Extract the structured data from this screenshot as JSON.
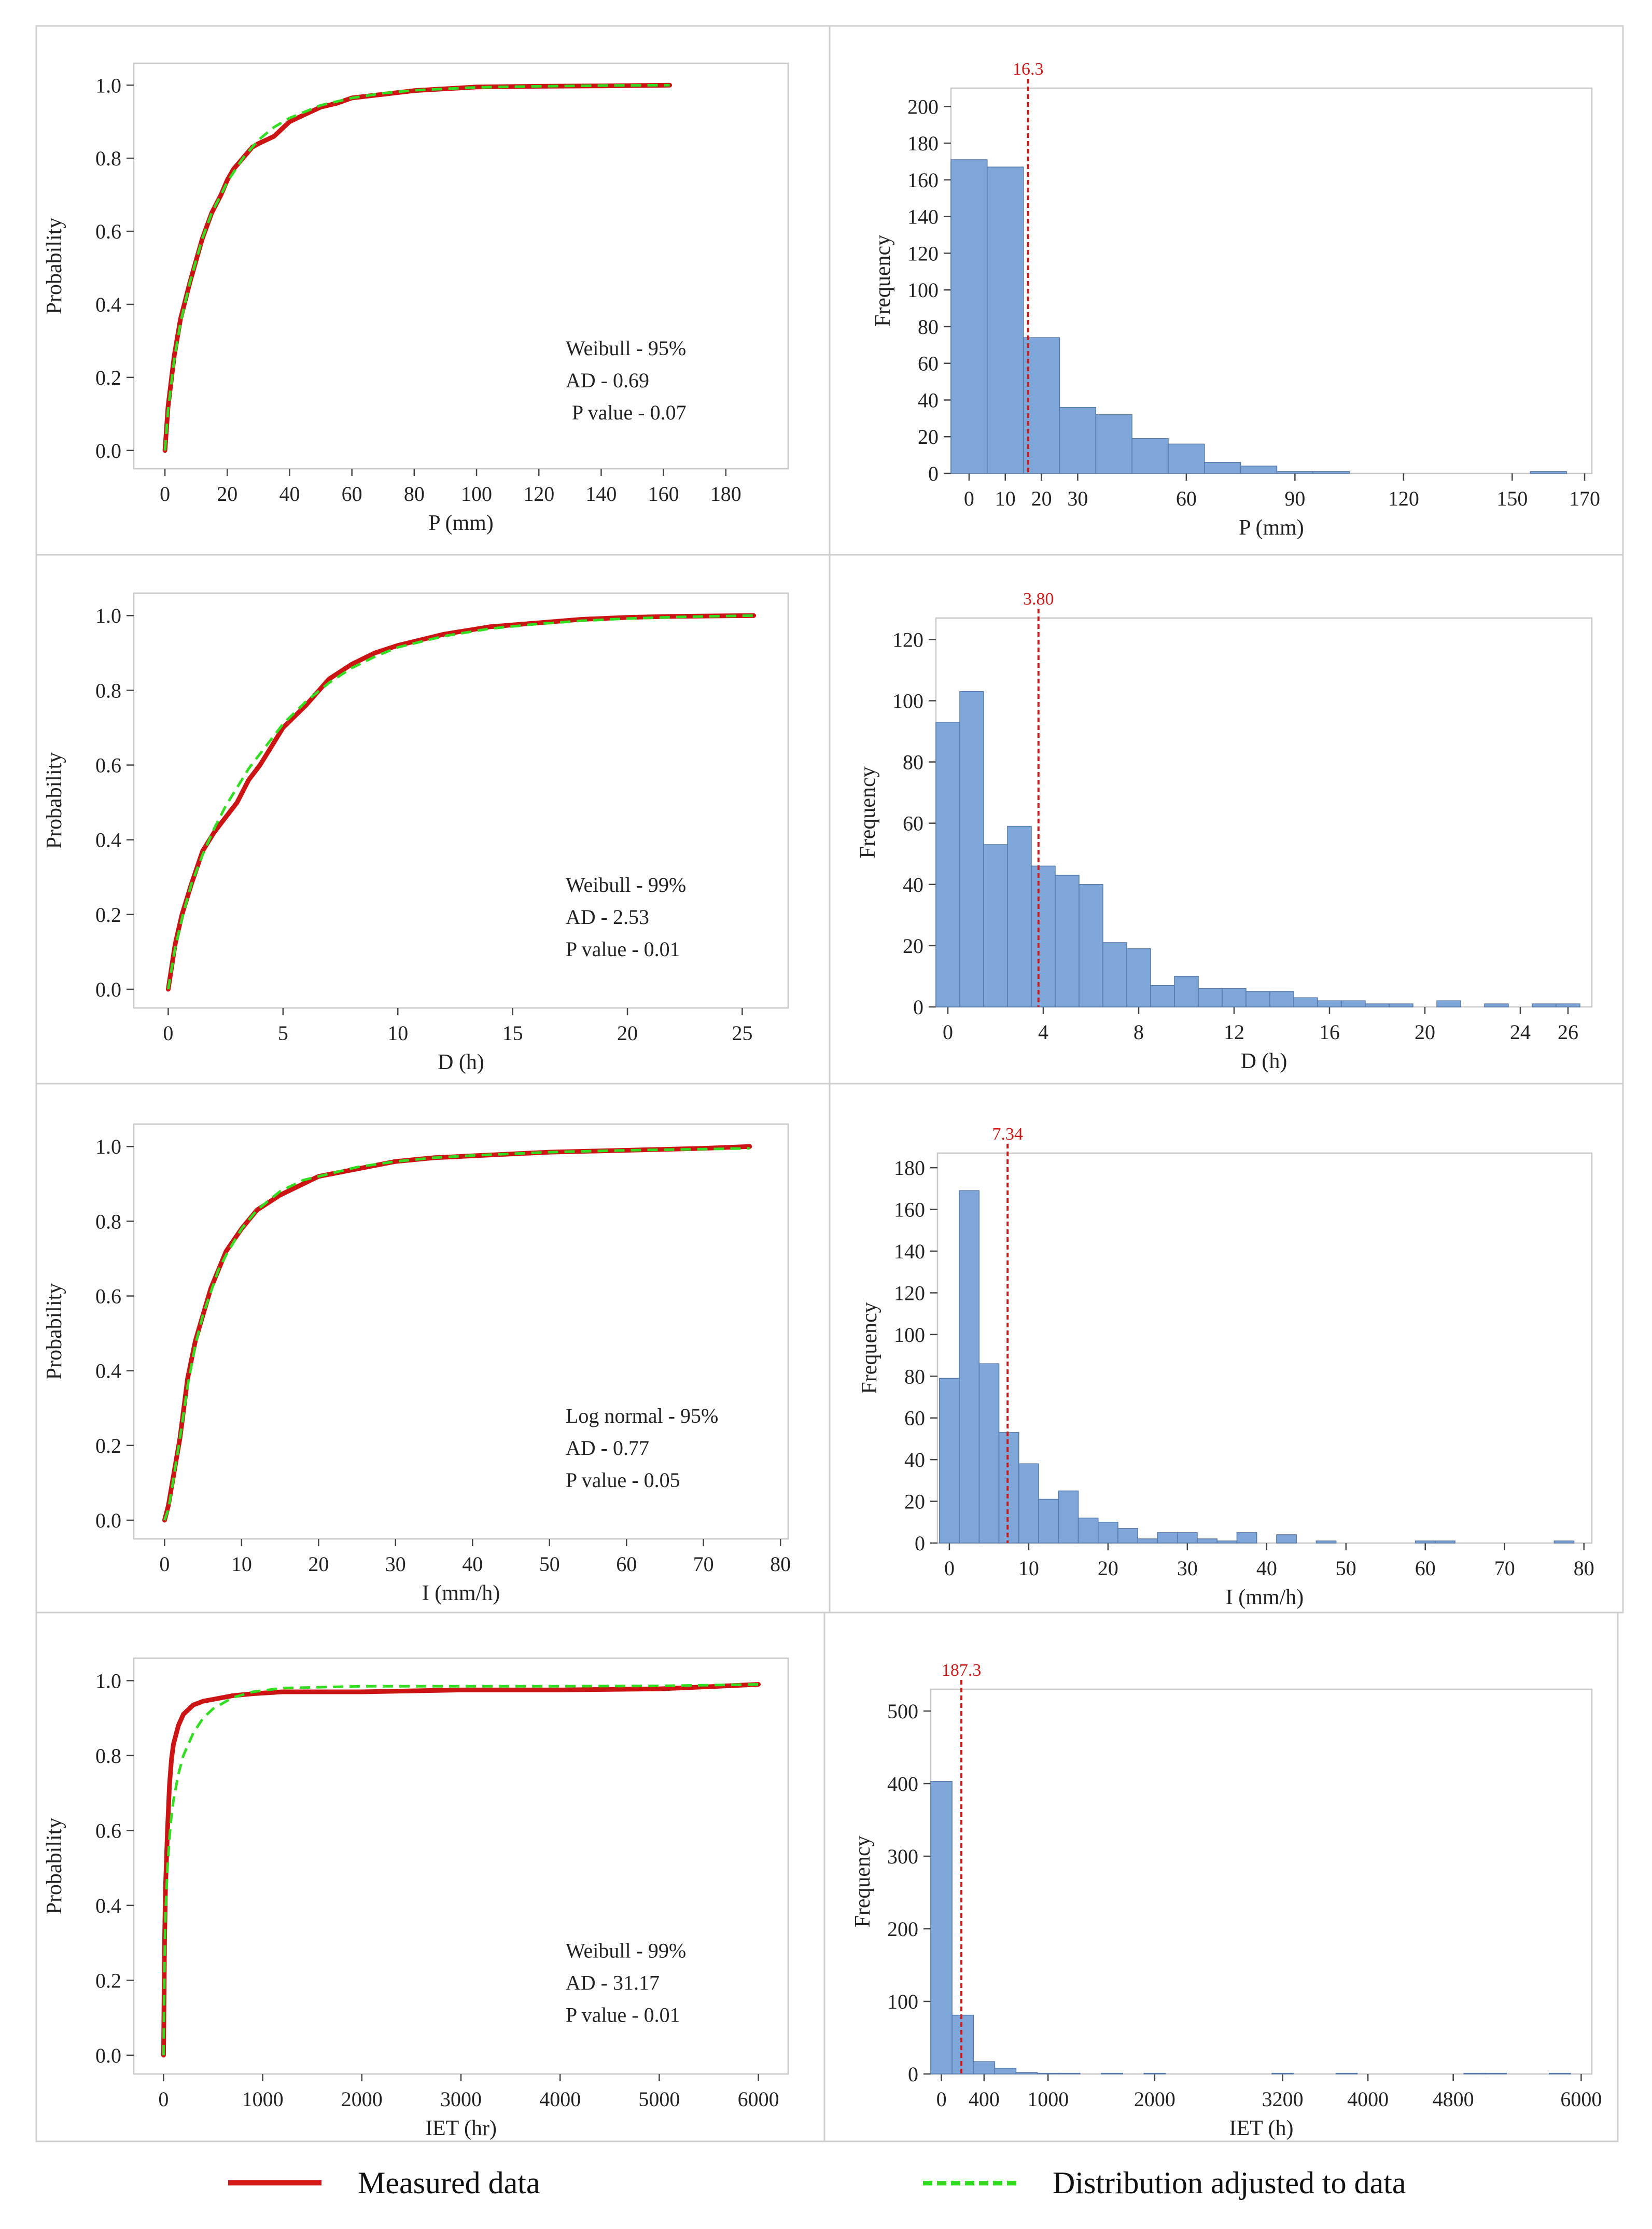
{
  "colors": {
    "measured": "#cc1414",
    "fitted": "#33dd22",
    "bar_fill": "#7ea6d9",
    "bar_stroke": "#5578a8",
    "marker": "#cc1a1a",
    "panel_border": "#cfcfcf",
    "axis_frame": "#c8c8c8"
  },
  "legend": {
    "measured_label": "Measured data",
    "fitted_label": "Distribution adjusted to data"
  },
  "chart_data": [
    {
      "type": "line",
      "id": "cdf-p",
      "xlabel": "P (mm)",
      "ylabel": "Probability",
      "xlim": [
        -10,
        200
      ],
      "ylim": [
        -0.05,
        1.06
      ],
      "xticks": [
        0,
        20,
        40,
        60,
        80,
        100,
        120,
        140,
        160,
        180
      ],
      "yticks": [
        0.0,
        0.2,
        0.4,
        0.6,
        0.8,
        1.0
      ],
      "annotation": [
        "Weibull - 95%",
        "AD - 0.69",
        "P value - 0.07"
      ],
      "series": [
        {
          "name": "Measured data",
          "x": [
            0,
            1,
            3,
            5,
            8,
            10,
            12,
            15,
            18,
            20,
            22,
            25,
            28,
            30,
            35,
            40,
            45,
            50,
            55,
            60,
            70,
            80,
            90,
            100,
            120,
            140,
            162
          ],
          "y": [
            0.0,
            0.12,
            0.26,
            0.36,
            0.46,
            0.52,
            0.58,
            0.65,
            0.7,
            0.74,
            0.77,
            0.8,
            0.83,
            0.84,
            0.86,
            0.9,
            0.92,
            0.94,
            0.95,
            0.965,
            0.975,
            0.985,
            0.99,
            0.995,
            0.997,
            0.998,
            1.0
          ]
        },
        {
          "name": "Distribution adjusted to data",
          "x": [
            0,
            1,
            3,
            5,
            8,
            10,
            12,
            15,
            18,
            20,
            25,
            30,
            35,
            40,
            50,
            60,
            70,
            80,
            100,
            120,
            140,
            162
          ],
          "y": [
            0.0,
            0.11,
            0.25,
            0.35,
            0.46,
            0.52,
            0.58,
            0.65,
            0.7,
            0.735,
            0.8,
            0.85,
            0.885,
            0.91,
            0.945,
            0.965,
            0.978,
            0.986,
            0.994,
            0.997,
            0.999,
            1.0
          ]
        }
      ]
    },
    {
      "type": "bar",
      "id": "hist-p",
      "xlabel": "P (mm)",
      "ylabel": "Frequency",
      "xlim": [
        -5,
        172
      ],
      "ylim": [
        0,
        210
      ],
      "xticks": [
        0,
        10,
        20,
        30,
        60,
        90,
        120,
        150,
        170
      ],
      "yticks": [
        0,
        20,
        40,
        60,
        80,
        100,
        120,
        140,
        160,
        180,
        200
      ],
      "bin_edges": [
        -5,
        5,
        15,
        25,
        35,
        45,
        55,
        65,
        75,
        85,
        95,
        105,
        115,
        125,
        135,
        145,
        155,
        165
      ],
      "values": [
        171,
        167,
        74,
        36,
        32,
        19,
        16,
        6,
        4,
        1,
        1,
        0,
        0,
        0,
        0,
        0,
        1
      ],
      "marker": {
        "value": 16.3,
        "label": "16.3"
      }
    },
    {
      "type": "line",
      "id": "cdf-d",
      "xlabel": "D (h)",
      "ylabel": "Probability",
      "xlim": [
        -1.5,
        27
      ],
      "ylim": [
        -0.05,
        1.06
      ],
      "xticks": [
        0,
        5,
        10,
        15,
        20,
        25
      ],
      "yticks": [
        0.0,
        0.2,
        0.4,
        0.6,
        0.8,
        1.0
      ],
      "annotation": [
        "Weibull - 99%",
        "AD - 2.53",
        "P value - 0.01"
      ],
      "series": [
        {
          "name": "Measured data",
          "x": [
            0,
            0.3,
            0.6,
            1.0,
            1.5,
            2.0,
            2.5,
            3.0,
            3.5,
            4.0,
            4.5,
            5.0,
            6.0,
            7.0,
            8.0,
            9.0,
            10.0,
            12.0,
            14.0,
            16.0,
            18.0,
            20.0,
            22.0,
            25.5
          ],
          "y": [
            0.0,
            0.12,
            0.2,
            0.28,
            0.37,
            0.42,
            0.46,
            0.5,
            0.56,
            0.6,
            0.65,
            0.7,
            0.76,
            0.83,
            0.87,
            0.9,
            0.92,
            0.95,
            0.97,
            0.98,
            0.99,
            0.995,
            0.998,
            1.0
          ]
        },
        {
          "name": "Distribution adjusted to data",
          "x": [
            0,
            0.3,
            0.6,
            1.0,
            1.5,
            2.0,
            2.5,
            3.0,
            3.5,
            4.0,
            4.5,
            5.0,
            6.0,
            7.0,
            8.0,
            9.0,
            10.0,
            12.0,
            14.0,
            16.0,
            18.0,
            20.0,
            22.0,
            25.5
          ],
          "y": [
            0.0,
            0.11,
            0.19,
            0.28,
            0.36,
            0.43,
            0.49,
            0.54,
            0.59,
            0.63,
            0.67,
            0.71,
            0.77,
            0.82,
            0.86,
            0.89,
            0.915,
            0.945,
            0.965,
            0.977,
            0.986,
            0.992,
            0.996,
            1.0
          ]
        }
      ]
    },
    {
      "type": "bar",
      "id": "hist-d",
      "xlabel": "D (h)",
      "ylabel": "Frequency",
      "xlim": [
        -0.5,
        27
      ],
      "ylim": [
        0,
        127
      ],
      "xticks": [
        0,
        4,
        8,
        12,
        16,
        20,
        24,
        26
      ],
      "yticks": [
        0,
        20,
        40,
        60,
        80,
        100,
        120
      ],
      "bin_edges": [
        -0.5,
        0.5,
        1.5,
        2.5,
        3.5,
        4.5,
        5.5,
        6.5,
        7.5,
        8.5,
        9.5,
        10.5,
        11.5,
        12.5,
        13.5,
        14.5,
        15.5,
        16.5,
        17.5,
        18.5,
        19.5,
        20.5,
        21.5,
        22.5,
        23.5,
        24.5,
        25.5,
        26.5
      ],
      "values": [
        93,
        103,
        53,
        59,
        46,
        43,
        40,
        21,
        19,
        7,
        10,
        6,
        6,
        5,
        5,
        3,
        2,
        2,
        1,
        1,
        0,
        2,
        0,
        1,
        0,
        1,
        1
      ],
      "marker": {
        "value": 3.8,
        "label": "3.80"
      }
    },
    {
      "type": "line",
      "id": "cdf-i",
      "xlabel": "I (mm/h)",
      "ylabel": "Probability",
      "xlim": [
        -4,
        81
      ],
      "ylim": [
        -0.05,
        1.06
      ],
      "xticks": [
        0,
        10,
        20,
        30,
        40,
        50,
        60,
        70,
        80
      ],
      "yticks": [
        0.0,
        0.2,
        0.4,
        0.6,
        0.8,
        1.0
      ],
      "annotation": [
        "Log normal - 95%",
        "AD - 0.77",
        "P value - 0.05"
      ],
      "series": [
        {
          "name": "Measured data",
          "x": [
            0,
            0.5,
            1,
            2,
            3,
            4,
            5,
            6,
            7,
            8,
            10,
            12,
            15,
            18,
            20,
            25,
            30,
            35,
            40,
            50,
            60,
            70,
            76
          ],
          "y": [
            0.0,
            0.04,
            0.1,
            0.22,
            0.38,
            0.48,
            0.55,
            0.62,
            0.67,
            0.72,
            0.78,
            0.83,
            0.87,
            0.9,
            0.92,
            0.94,
            0.96,
            0.97,
            0.975,
            0.985,
            0.99,
            0.995,
            1.0
          ]
        },
        {
          "name": "Distribution adjusted to data",
          "x": [
            0,
            0.5,
            1,
            2,
            3,
            4,
            5,
            6,
            7,
            8,
            10,
            12,
            15,
            18,
            20,
            25,
            30,
            35,
            40,
            50,
            60,
            70,
            76
          ],
          "y": [
            0.0,
            0.03,
            0.09,
            0.22,
            0.36,
            0.47,
            0.55,
            0.61,
            0.67,
            0.71,
            0.78,
            0.83,
            0.88,
            0.91,
            0.92,
            0.945,
            0.96,
            0.97,
            0.976,
            0.985,
            0.99,
            0.993,
            0.995
          ]
        }
      ]
    },
    {
      "type": "bar",
      "id": "hist-i",
      "xlabel": "I (mm/h)",
      "ylabel": "Frequency",
      "xlim": [
        -1.5,
        81
      ],
      "ylim": [
        0,
        187
      ],
      "xticks": [
        0,
        10,
        20,
        30,
        40,
        50,
        60,
        70,
        80
      ],
      "yticks": [
        0,
        20,
        40,
        60,
        80,
        100,
        120,
        140,
        160,
        180
      ],
      "bin_edges": [
        -1.25,
        1.25,
        3.75,
        6.25,
        8.75,
        11.25,
        13.75,
        16.25,
        18.75,
        21.25,
        23.75,
        26.25,
        28.75,
        31.25,
        33.75,
        36.25,
        38.75,
        41.25,
        43.75,
        46.25,
        48.75,
        51.25,
        53.75,
        56.25,
        58.75,
        61.25,
        63.75,
        66.25,
        68.75,
        71.25,
        73.75,
        76.25,
        78.75
      ],
      "values": [
        79,
        169,
        86,
        53,
        38,
        21,
        25,
        12,
        10,
        7,
        2,
        5,
        5,
        2,
        1,
        5,
        0,
        4,
        0,
        1,
        0,
        0,
        0,
        0,
        1,
        1,
        0,
        0,
        0,
        0,
        0,
        1
      ],
      "marker": {
        "value": 7.34,
        "label": "7.34"
      }
    },
    {
      "type": "line",
      "id": "cdf-iet",
      "xlabel": "IET (hr)",
      "ylabel": "Probability",
      "xlim": [
        -300,
        6300
      ],
      "ylim": [
        -0.05,
        1.06
      ],
      "xticks": [
        0,
        1000,
        2000,
        3000,
        4000,
        5000,
        6000
      ],
      "yticks": [
        0.0,
        0.2,
        0.4,
        0.6,
        0.8,
        1.0
      ],
      "annotation": [
        "Weibull - 99%",
        "AD - 31.17",
        "P value - 0.01"
      ],
      "series": [
        {
          "name": "Measured data",
          "x": [
            0,
            10,
            20,
            40,
            60,
            80,
            100,
            150,
            200,
            300,
            400,
            500,
            700,
            900,
            1200,
            2000,
            3000,
            4000,
            5000,
            5600,
            6000
          ],
          "y": [
            0.0,
            0.3,
            0.45,
            0.6,
            0.72,
            0.79,
            0.83,
            0.88,
            0.91,
            0.935,
            0.945,
            0.95,
            0.96,
            0.965,
            0.97,
            0.97,
            0.975,
            0.975,
            0.978,
            0.985,
            0.99
          ]
        },
        {
          "name": "Distribution adjusted to data",
          "x": [
            0,
            10,
            20,
            40,
            60,
            80,
            100,
            150,
            200,
            300,
            400,
            500,
            700,
            900,
            1200,
            2000,
            3000,
            4000,
            5000,
            6000
          ],
          "y": [
            0.0,
            0.25,
            0.38,
            0.5,
            0.58,
            0.64,
            0.68,
            0.75,
            0.8,
            0.86,
            0.9,
            0.925,
            0.955,
            0.97,
            0.98,
            0.985,
            0.985,
            0.985,
            0.986,
            0.99
          ]
        }
      ]
    },
    {
      "type": "bar",
      "id": "hist-iet",
      "xlabel": "IET (h)",
      "ylabel": "Frequency",
      "xlim": [
        -100,
        6100
      ],
      "ylim": [
        0,
        530
      ],
      "xticks": [
        0,
        400,
        1000,
        2000,
        3200,
        4000,
        4800,
        6000
      ],
      "yticks": [
        0,
        100,
        200,
        300,
        400,
        500
      ],
      "bin_edges": [
        -100,
        100,
        300,
        500,
        700,
        900,
        1100,
        1300,
        1500,
        1700,
        1900,
        2100,
        2300,
        2500,
        2700,
        2900,
        3100,
        3300,
        3500,
        3700,
        3900,
        4100,
        4300,
        4500,
        4700,
        4900,
        5100,
        5300,
        5500,
        5700,
        5900
      ],
      "values": [
        403,
        81,
        17,
        8,
        2,
        1,
        1,
        0,
        1,
        0,
        1,
        0,
        0,
        0,
        0,
        0,
        1,
        0,
        0,
        1,
        0,
        0,
        0,
        0,
        0,
        1,
        1,
        0,
        0,
        1
      ],
      "marker": {
        "value": 187.3,
        "label": "187.3"
      }
    }
  ]
}
